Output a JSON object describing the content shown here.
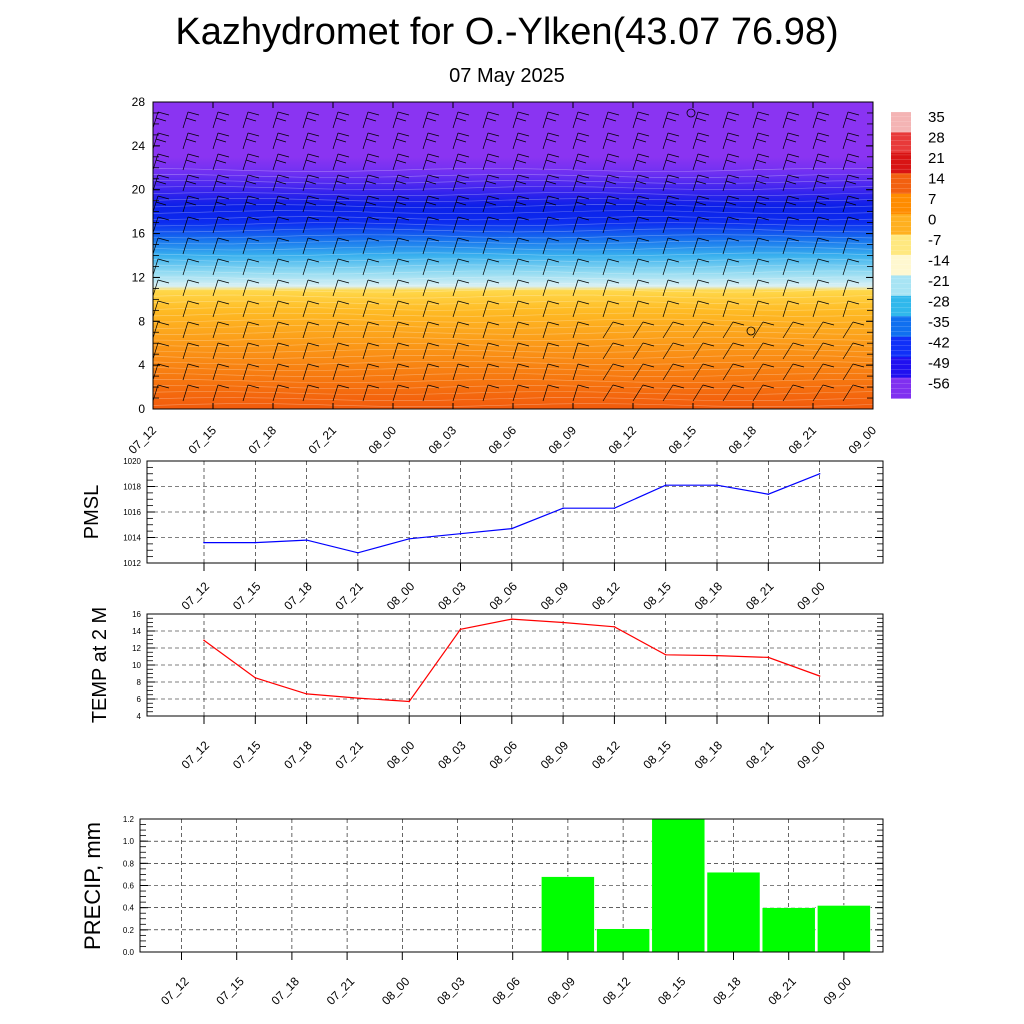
{
  "header": {
    "title": "Kazhydromet for O.-Ylken(43.07 76.98)",
    "subtitle": "07 May 2025"
  },
  "colors": {
    "pmsl_line": "#0000ff",
    "temp_line": "#ff0000",
    "precip_bar": "#00ff00"
  },
  "chart_data": [
    {
      "type": "heatmap",
      "name": "temperature-cross-section",
      "x": [
        "07_12",
        "07_15",
        "07_18",
        "07_21",
        "08_00",
        "08_03",
        "08_06",
        "08_09",
        "08_12",
        "08_15",
        "08_18",
        "08_21",
        "09_00"
      ],
      "y_ticks": [
        "0",
        "4",
        "8",
        "12",
        "16",
        "20",
        "24",
        "28"
      ],
      "ylim": [
        0,
        28
      ],
      "colorbar": {
        "labels": [
          "35",
          "28",
          "21",
          "14",
          "7",
          "0",
          "-7",
          "-14",
          "-21",
          "-28",
          "-35",
          "-42",
          "-49",
          "-56"
        ],
        "colors": [
          "#f4b4b4",
          "#e83a3a",
          "#d81414",
          "#f26010",
          "#ff8c00",
          "#ffb020",
          "#ffe880",
          "#fff8d0",
          "#a8e4f4",
          "#30b8ec",
          "#1070f0",
          "#1030f8",
          "#2010f0",
          "#8030f0"
        ]
      },
      "profile": [
        {
          "h": 0,
          "color": "#f25a0c"
        },
        {
          "h": 3,
          "color": "#f77a10"
        },
        {
          "h": 6,
          "color": "#fb9a18"
        },
        {
          "h": 9,
          "color": "#ffbb24"
        },
        {
          "h": 10.8,
          "color": "#ffd84a"
        },
        {
          "h": 11.2,
          "color": "#d8f0f4"
        },
        {
          "h": 12.5,
          "color": "#90daf2"
        },
        {
          "h": 14,
          "color": "#38b0ee"
        },
        {
          "h": 15.5,
          "color": "#1670ee"
        },
        {
          "h": 17,
          "color": "#0c2cf0"
        },
        {
          "h": 18.5,
          "color": "#0c20e8"
        },
        {
          "h": 20,
          "color": "#3c24ee"
        },
        {
          "h": 21.5,
          "color": "#6e30f2"
        },
        {
          "h": 23,
          "color": "#8a34f2"
        },
        {
          "h": 28,
          "color": "#8a34f2"
        }
      ]
    },
    {
      "type": "line",
      "name": "pmsl",
      "ylabel": "PMSL",
      "x": [
        "07_12",
        "07_15",
        "07_18",
        "07_21",
        "08_00",
        "08_03",
        "08_06",
        "08_09",
        "08_12",
        "08_15",
        "08_18",
        "08_21",
        "09_00"
      ],
      "values": [
        1013.6,
        1013.6,
        1013.8,
        1012.8,
        1013.9,
        1014.3,
        1014.7,
        1016.3,
        1016.3,
        1018.1,
        1018.1,
        1017.4,
        1019.0
      ],
      "ylim": [
        1012,
        1020
      ],
      "y_ticks": [
        "1012",
        "1014",
        "1016",
        "1018",
        "1020"
      ],
      "grid": true
    },
    {
      "type": "line",
      "name": "temp2m",
      "ylabel": "TEMP at 2 M",
      "x": [
        "07_12",
        "07_15",
        "07_18",
        "07_21",
        "08_00",
        "08_03",
        "08_06",
        "08_09",
        "08_12",
        "08_15",
        "08_18",
        "08_21",
        "09_00"
      ],
      "values": [
        12.9,
        8.5,
        6.6,
        6.1,
        5.7,
        14.2,
        15.4,
        15.0,
        14.5,
        11.2,
        11.1,
        10.9,
        8.7
      ],
      "ylim": [
        4,
        16
      ],
      "y_ticks": [
        "4",
        "6",
        "8",
        "10",
        "12",
        "14",
        "16"
      ],
      "grid": true
    },
    {
      "type": "bar",
      "name": "precip",
      "ylabel": "PRECIP, mm",
      "categories": [
        "07_12",
        "07_15",
        "07_18",
        "07_21",
        "08_00",
        "08_03",
        "08_06",
        "08_09",
        "08_12",
        "08_15",
        "08_18",
        "08_21",
        "09_00"
      ],
      "values": [
        0,
        0,
        0,
        0,
        0,
        0,
        0,
        0.68,
        0.21,
        1.2,
        0.72,
        0.4,
        0.42
      ],
      "ylim": [
        0,
        1.2
      ],
      "y_ticks": [
        "0.0",
        "0.2",
        "0.4",
        "0.6",
        "0.8",
        "1.0",
        "1.2"
      ],
      "grid": true
    }
  ]
}
